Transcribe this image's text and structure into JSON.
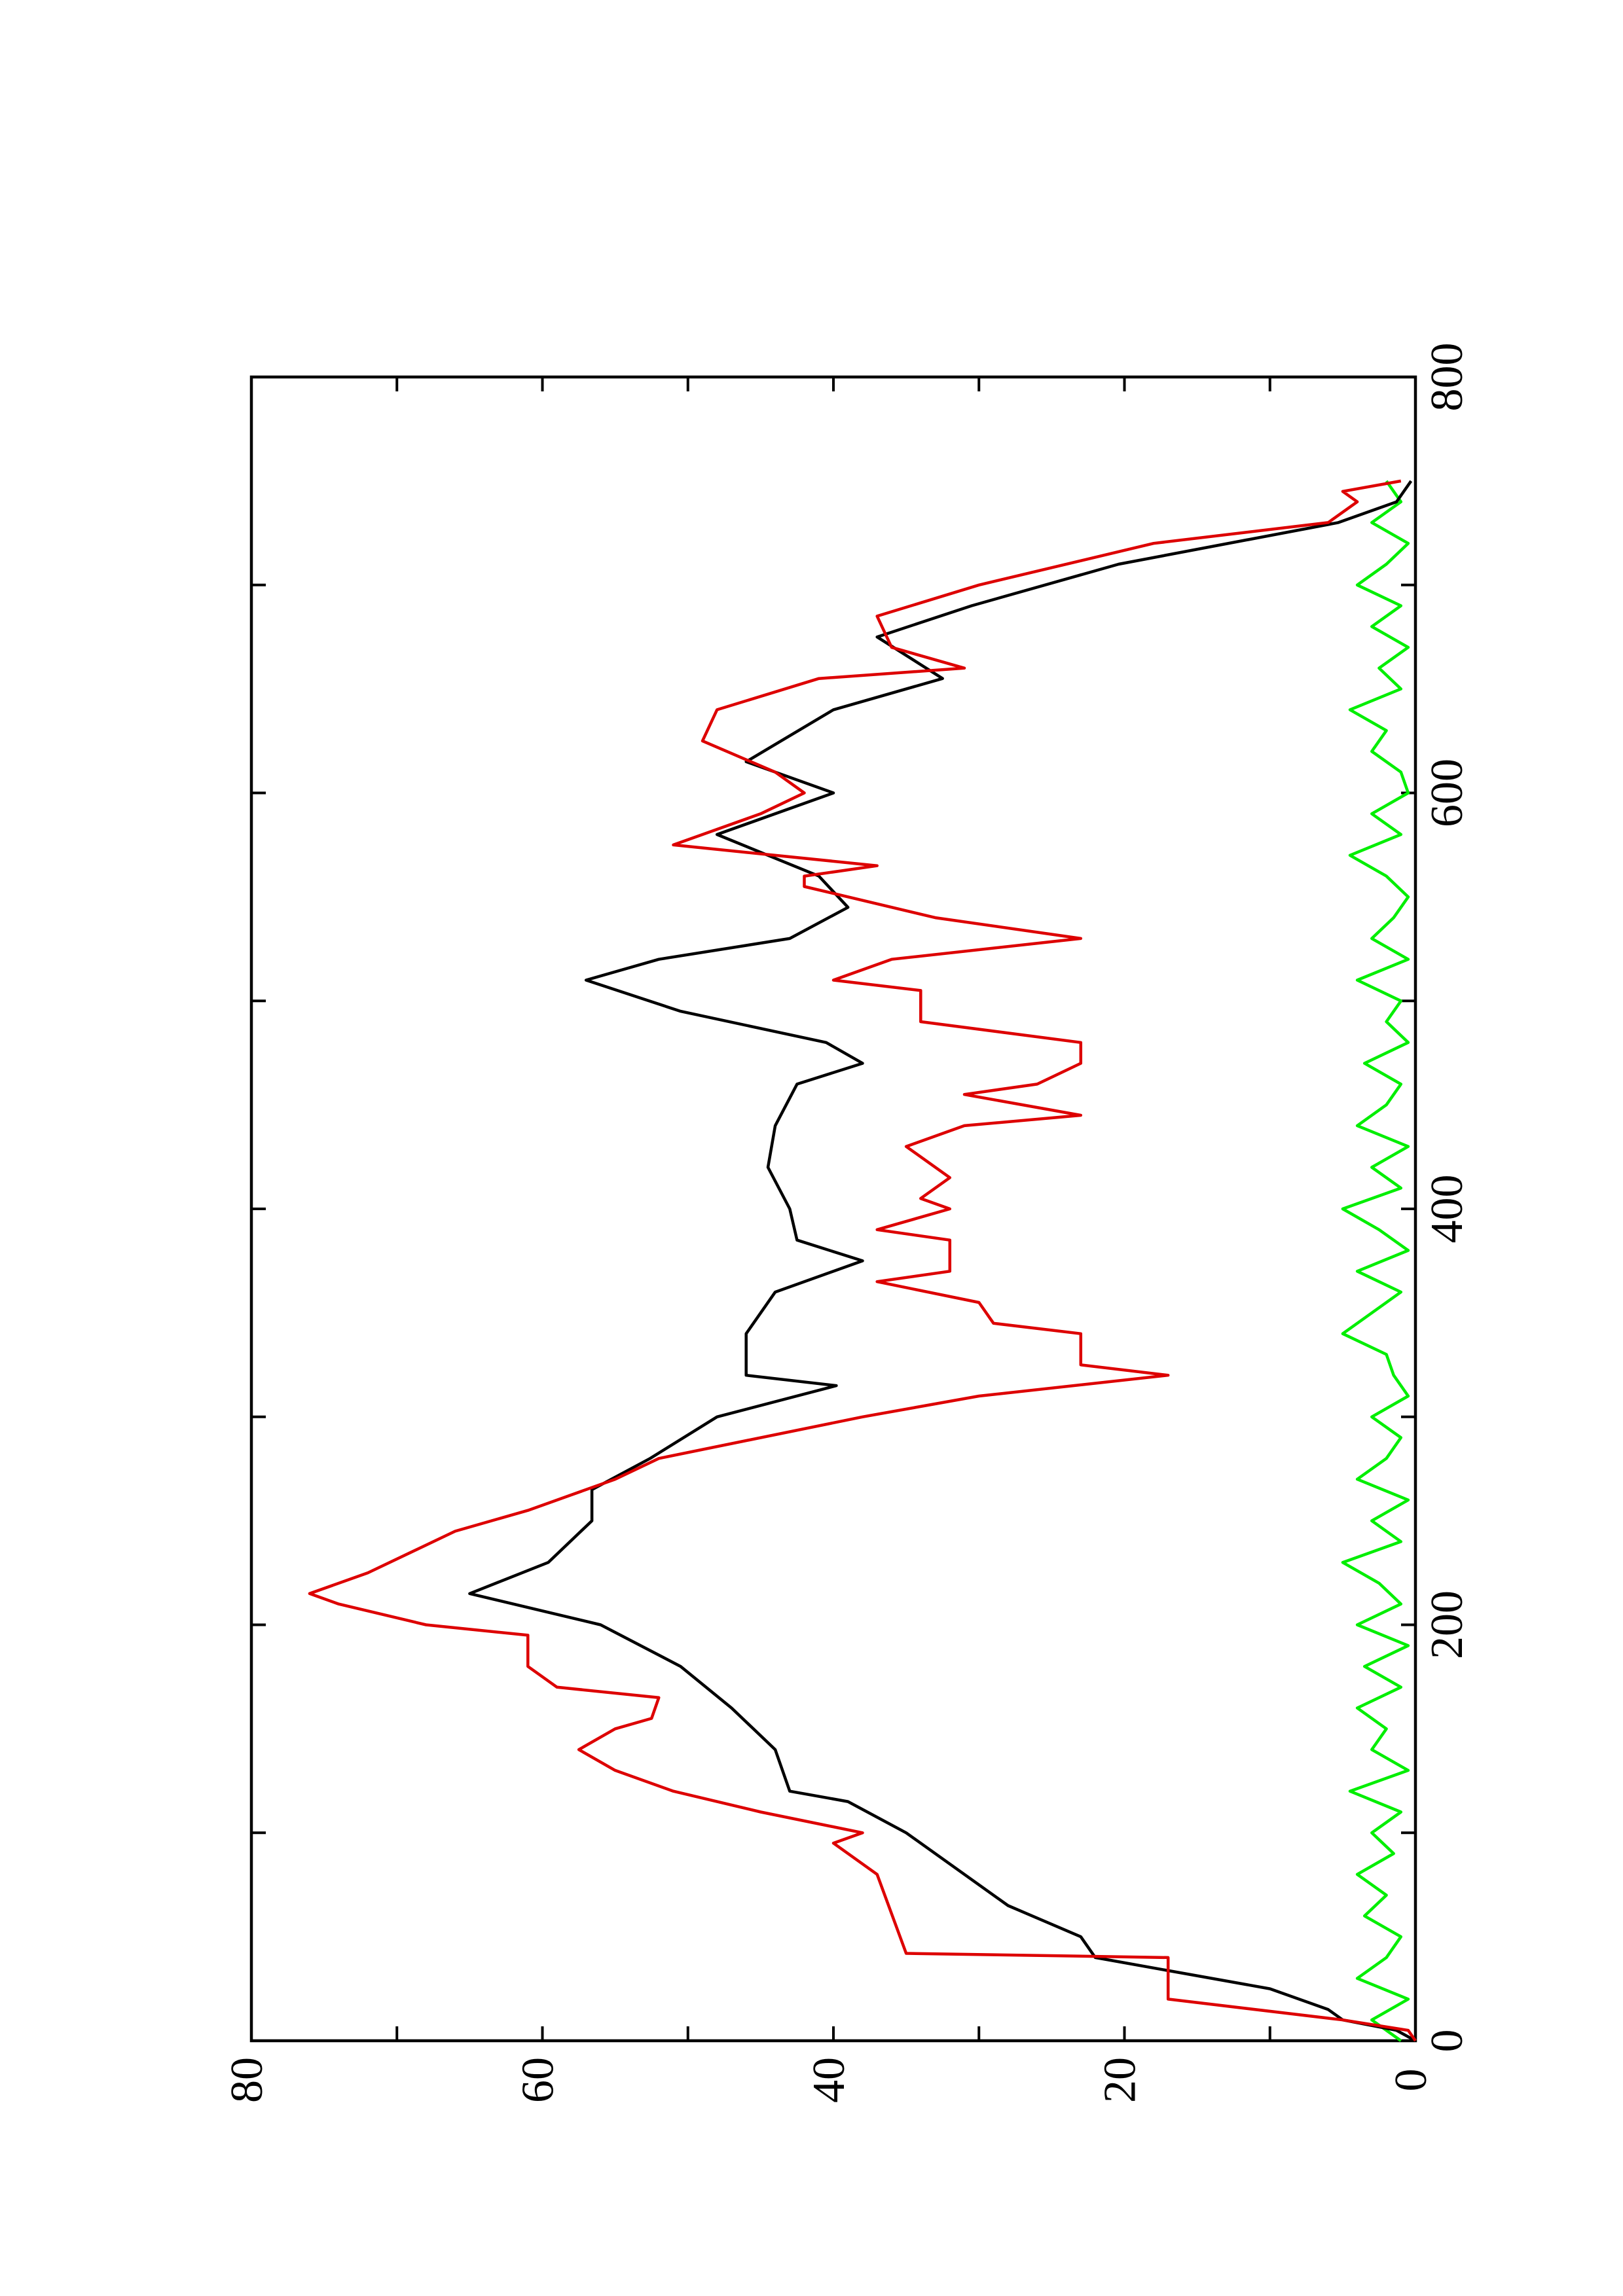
{
  "chart_data": {
    "type": "line",
    "xlim": [
      0,
      800
    ],
    "ylim": [
      0,
      80
    ],
    "xticks": [
      0,
      200,
      400,
      600,
      800
    ],
    "xminorticks": [
      100,
      300,
      500,
      700
    ],
    "yticks": [
      0,
      20,
      40,
      60,
      80
    ],
    "yminorticks": [
      10,
      30,
      50,
      70
    ],
    "series": [
      {
        "color": "#00ee00",
        "x": [
          0,
          10,
          20,
          30,
          40,
          50,
          60,
          70,
          80,
          90,
          100,
          110,
          120,
          130,
          140,
          150,
          160,
          170,
          180,
          190,
          200,
          210,
          220,
          230,
          240,
          250,
          260,
          270,
          280,
          290,
          300,
          310,
          320,
          330,
          340,
          350,
          360,
          370,
          380,
          390,
          400,
          410,
          420,
          430,
          440,
          450,
          460,
          470,
          480,
          490,
          500,
          510,
          520,
          530,
          540,
          550,
          560,
          570,
          580,
          590,
          600,
          610,
          620,
          630,
          640,
          650,
          660,
          670,
          680,
          690,
          700,
          710,
          720,
          730,
          740,
          750
        ],
        "values": [
          1,
          3,
          0.5,
          4,
          2,
          1,
          3.5,
          2,
          4,
          1.5,
          3,
          1,
          4.5,
          0.5,
          3,
          2,
          4,
          1,
          3.5,
          0.5,
          4,
          1,
          2.5,
          5,
          1,
          3,
          0.5,
          4,
          2,
          1,
          3,
          0.5,
          1.5,
          2,
          5,
          3,
          1,
          4,
          0.5,
          2.5,
          5,
          1,
          3,
          0.5,
          4,
          2,
          1,
          3.5,
          0.5,
          2,
          1,
          4,
          0.5,
          3,
          1.5,
          0.5,
          2,
          4.5,
          1,
          3,
          0.5,
          1,
          3,
          2,
          4.5,
          1,
          2.5,
          0.5,
          3,
          1,
          4,
          2,
          0.5,
          3,
          1,
          2
        ]
      },
      {
        "color": "#000000",
        "x": [
          0,
          5,
          10,
          15,
          25,
          40,
          50,
          65,
          80,
          100,
          115,
          120,
          140,
          160,
          180,
          200,
          215,
          230,
          250,
          265,
          280,
          300,
          315,
          320,
          340,
          360,
          375,
          385,
          400,
          420,
          440,
          460,
          470,
          480,
          495,
          510,
          520,
          530,
          545,
          560,
          580,
          600,
          615,
          640,
          655,
          675,
          690,
          710,
          730,
          740,
          750
        ],
        "values": [
          0,
          1.3,
          5,
          6,
          10,
          22,
          23,
          28,
          31,
          35,
          39,
          43,
          44,
          47,
          50.5,
          56,
          65,
          59.6,
          56.6,
          56.6,
          52.6,
          48,
          39.8,
          46,
          46,
          44,
          38,
          42.5,
          43,
          44.5,
          44,
          42.5,
          38,
          40.5,
          50.5,
          57,
          52,
          43,
          39,
          41,
          48,
          40,
          46,
          40,
          32.5,
          37,
          30.5,
          20.4,
          5.3,
          1.3,
          0.3
        ]
      },
      {
        "color": "#dd0000",
        "x": [
          0,
          5,
          10,
          20,
          40,
          42,
          80,
          95,
          100,
          110,
          120,
          130,
          140,
          150,
          155,
          165,
          170,
          180,
          195,
          200,
          210,
          215,
          225,
          235,
          245,
          255,
          270,
          280,
          300,
          310,
          320,
          325,
          340,
          345,
          355,
          365,
          370,
          385,
          390,
          400,
          405,
          415,
          430,
          440,
          445,
          455,
          460,
          470,
          480,
          490,
          505,
          510,
          520,
          530,
          540,
          555,
          560,
          565,
          575,
          590,
          600,
          610,
          625,
          640,
          655,
          660,
          670,
          685,
          700,
          720,
          730,
          740,
          745,
          750
        ],
        "values": [
          0,
          0.5,
          5,
          17,
          17,
          35,
          37,
          40,
          38,
          45,
          51,
          55,
          57.5,
          55,
          52.5,
          52,
          59,
          61,
          61,
          68,
          74,
          76,
          72,
          69,
          66,
          61,
          55,
          52,
          38,
          30,
          17,
          23,
          23,
          29,
          30,
          37,
          32,
          32,
          37,
          32,
          34,
          32,
          35,
          31,
          23,
          31,
          26,
          23,
          23,
          34,
          34,
          40,
          36,
          23,
          33,
          42,
          42,
          37,
          51,
          45,
          42,
          44,
          49,
          48,
          41,
          31,
          36,
          37,
          30,
          18,
          6,
          4,
          5,
          1
        ]
      }
    ]
  }
}
